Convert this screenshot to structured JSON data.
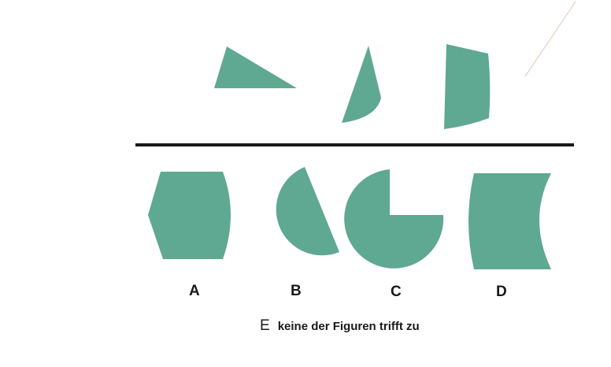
{
  "colors": {
    "shape_fill": "#5fa892",
    "divider": "#1a1a1a",
    "text": "#1a1a1a"
  },
  "question": {
    "pieces": [
      "right-triangle-piece",
      "curved-triangle-piece",
      "curved-trapezoid-piece"
    ]
  },
  "options": [
    {
      "letter": "A",
      "shape": "truncated-hexagon-with-curved-sides"
    },
    {
      "letter": "B",
      "shape": "circle-with-chord-cut"
    },
    {
      "letter": "C",
      "shape": "circle-with-quarter-removed"
    },
    {
      "letter": "D",
      "shape": "rectangle-with-concave-right-side"
    }
  ],
  "option_e": {
    "letter": "E",
    "text": "keine der Figuren trifft zu"
  }
}
